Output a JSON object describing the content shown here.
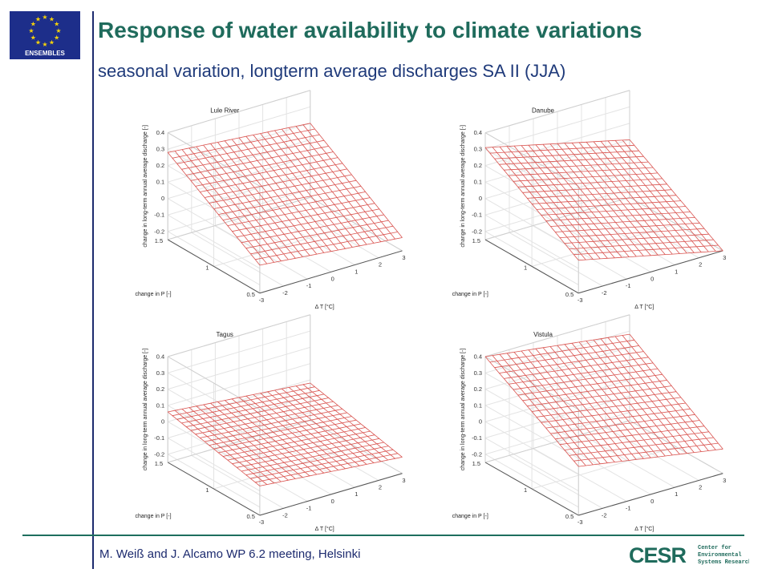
{
  "header": {
    "title": "Response of water availability to climate variations",
    "subtitle": "seasonal variation, longterm average discharges SA II (JJA)"
  },
  "logo": {
    "text": "ENSEMBLES",
    "bg": "#1d2e8a",
    "star_color": "#f5d20a"
  },
  "footer": {
    "authors": "M. Weiß and J. Alcamo WP 6.2 meeting, Helsinki",
    "institute_mark": "CESR",
    "institute_lines": [
      "Center for",
      "Environmental",
      "Systems Research"
    ]
  },
  "colors": {
    "title": "#1f6b5c",
    "subtitle": "#1f3a7a",
    "mesh": "#d9534f",
    "rule": "#1e6e5e"
  },
  "chart_data": [
    {
      "type": "surface",
      "title": "Lule River",
      "xlabel": "change in P [-]",
      "ylabel": "Δ T [°C]",
      "zlabel": "change in long-term annual average discharge [-]",
      "p_ticks": [
        0.5,
        1,
        1.5
      ],
      "t_ticks": [
        -3,
        -2,
        -1,
        0,
        1,
        2,
        3
      ],
      "z_ticks": [
        -0.2,
        -0.1,
        0,
        0.1,
        0.2,
        0.3,
        0.4
      ],
      "zlim": [
        -0.25,
        0.4
      ],
      "corner_values": {
        "p_min_t_min": -0.08,
        "p_max_t_min": 0.28,
        "p_min_t_max": -0.17,
        "p_max_t_max": 0.2
      }
    },
    {
      "type": "surface",
      "title": "Danube",
      "xlabel": "change in P [-]",
      "ylabel": "Δ T [°C]",
      "zlabel": "change in long-term annual average discharge [-]",
      "p_ticks": [
        0.5,
        1,
        1.5
      ],
      "t_ticks": [
        -3,
        -2,
        -1,
        0,
        1,
        2,
        3
      ],
      "z_ticks": [
        -0.2,
        -0.1,
        0,
        0.1,
        0.2,
        0.3,
        0.4
      ],
      "zlim": [
        -0.25,
        0.4
      ],
      "corner_values": {
        "p_min_t_min": -0.05,
        "p_max_t_min": 0.31,
        "p_min_t_max": -0.25,
        "p_max_t_max": 0.1
      }
    },
    {
      "type": "surface",
      "title": "Tagus",
      "xlabel": "change in P [-]",
      "ylabel": "Δ T [°C]",
      "zlabel": "change in long-term annual average discharge [-]",
      "p_ticks": [
        0.5,
        1,
        1.5
      ],
      "t_ticks": [
        -3,
        -2,
        -1,
        0,
        1,
        2,
        3
      ],
      "z_ticks": [
        -0.2,
        -0.1,
        0,
        0.1,
        0.2,
        0.3,
        0.4
      ],
      "zlim": [
        -0.25,
        0.4
      ],
      "corner_values": {
        "p_min_t_min": -0.07,
        "p_max_t_min": 0.06,
        "p_min_t_max": -0.15,
        "p_max_t_max": -0.02
      }
    },
    {
      "type": "surface",
      "title": "Vistula",
      "xlabel": "change in P [-]",
      "ylabel": "Δ T [°C]",
      "zlabel": "change in long-term annual average discharge [-]",
      "p_ticks": [
        0.5,
        1,
        1.5
      ],
      "t_ticks": [
        -3,
        -2,
        -1,
        0,
        1,
        2,
        3
      ],
      "z_ticks": [
        -0.2,
        -0.1,
        0,
        0.1,
        0.2,
        0.3,
        0.4
      ],
      "zlim": [
        -0.25,
        0.4
      ],
      "corner_values": {
        "p_min_t_min": 0.05,
        "p_max_t_min": 0.4,
        "p_min_t_max": -0.1,
        "p_max_t_max": 0.28
      }
    }
  ]
}
